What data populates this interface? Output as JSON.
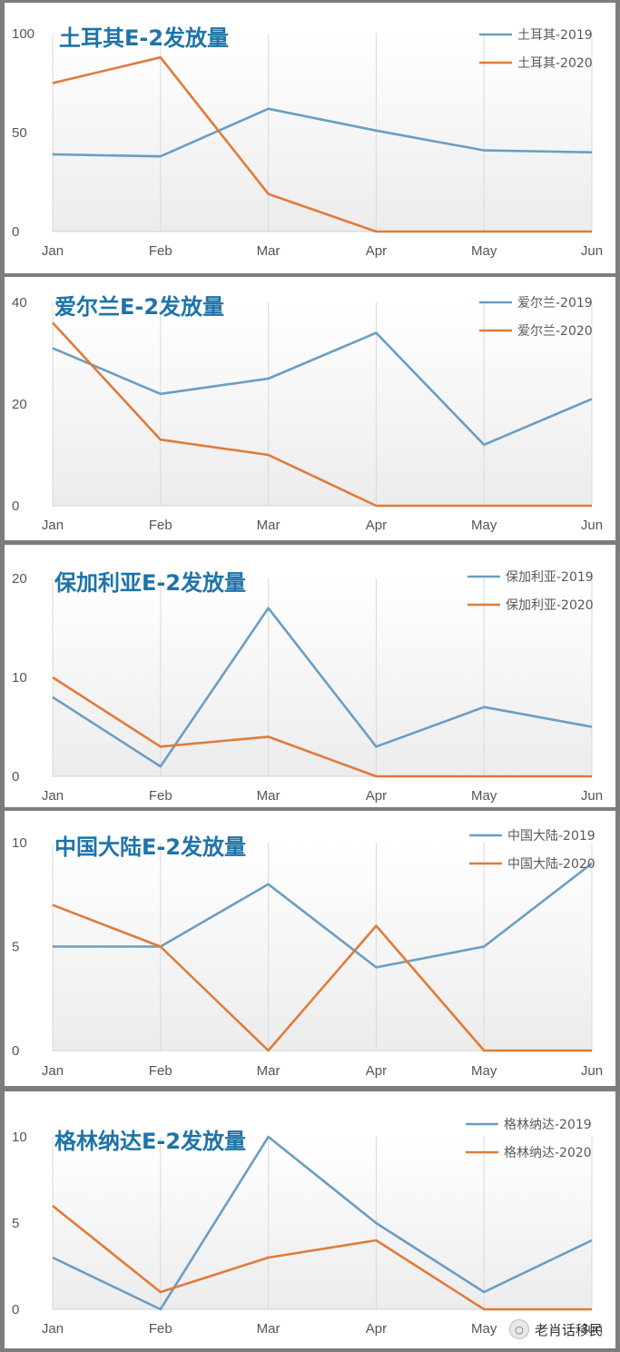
{
  "colors": {
    "series_2019": "#6a9ec2",
    "series_2020": "#e07b39",
    "title": "#1e73a8"
  },
  "categories": [
    "Jan",
    "Feb",
    "Mar",
    "Apr",
    "May",
    "Jun"
  ],
  "chart_data": [
    {
      "type": "line",
      "title": "土耳其E-2发放量",
      "ylim": [
        0,
        100
      ],
      "yticks": [
        0,
        50,
        100
      ],
      "legend_position": "top-right",
      "series": [
        {
          "name": "土耳其-2019",
          "values": [
            39,
            38,
            62,
            51,
            41,
            40
          ]
        },
        {
          "name": "土耳其-2020",
          "values": [
            75,
            88,
            19,
            0,
            0,
            0
          ]
        }
      ]
    },
    {
      "type": "line",
      "title": "爱尔兰E-2发放量",
      "ylim": [
        0,
        40
      ],
      "yticks": [
        0,
        20,
        40
      ],
      "legend_position": "top-right",
      "series": [
        {
          "name": "爱尔兰-2019",
          "values": [
            31,
            22,
            25,
            34,
            12,
            21
          ]
        },
        {
          "name": "爱尔兰-2020",
          "values": [
            36,
            13,
            10,
            0,
            0,
            0
          ]
        }
      ]
    },
    {
      "type": "line",
      "title": "保加利亚E-2发放量",
      "ylim": [
        0,
        20
      ],
      "yticks": [
        0,
        10,
        20
      ],
      "legend_position": "top-right",
      "series": [
        {
          "name": "保加利亚-2019",
          "values": [
            8,
            1,
            17,
            3,
            7,
            5
          ]
        },
        {
          "name": "保加利亚-2020",
          "values": [
            10,
            3,
            4,
            0,
            0,
            0
          ]
        }
      ]
    },
    {
      "type": "line",
      "title": "中国大陆E-2发放量",
      "ylim": [
        0,
        10
      ],
      "yticks": [
        0,
        5,
        10
      ],
      "legend_position": "top-right",
      "series": [
        {
          "name": "中国大陆-2019",
          "values": [
            5,
            5,
            8,
            4,
            5,
            9
          ]
        },
        {
          "name": "中国大陆-2020",
          "values": [
            7,
            5,
            0,
            6,
            0,
            0
          ]
        }
      ]
    },
    {
      "type": "line",
      "title": "格林纳达E-2发放量",
      "ylim": [
        0,
        10
      ],
      "yticks": [
        0,
        5,
        10
      ],
      "legend_position": "top-right",
      "series": [
        {
          "name": "格林纳达-2019",
          "values": [
            3,
            0,
            10,
            5,
            1,
            4
          ]
        },
        {
          "name": "格林纳达-2020",
          "values": [
            6,
            1,
            3,
            4,
            0,
            0
          ]
        }
      ]
    }
  ],
  "watermark": {
    "text": "老肖话移民"
  }
}
